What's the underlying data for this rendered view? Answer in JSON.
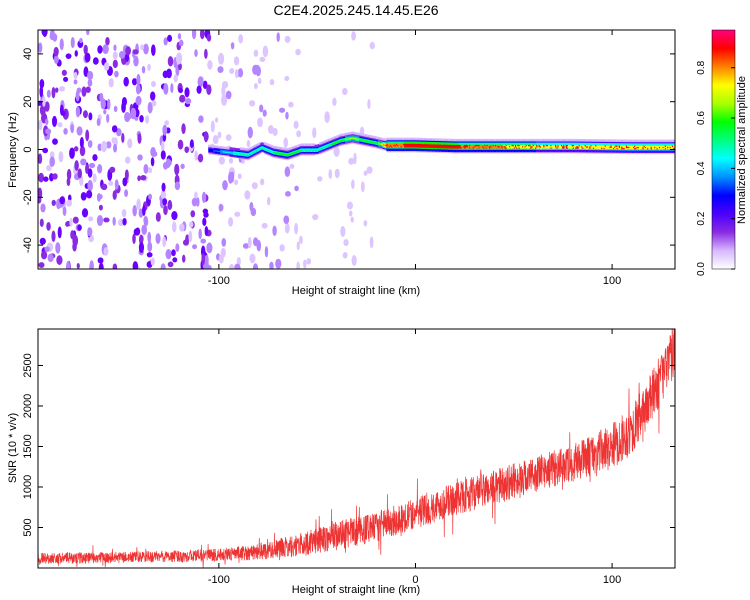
{
  "figure_title": "C2E4.2025.245.14.45.E26",
  "chart_data": [
    {
      "type": "heatmap",
      "title": "C2E4.2025.245.14.45.E26",
      "xlabel": "Height of straight line (km)",
      "ylabel": "Frequency (Hz)",
      "xlim": [
        -192,
        132
      ],
      "ylim": [
        -50,
        50
      ],
      "xticks": [
        -100,
        0,
        100
      ],
      "xtick_labels": [
        "-100",
        "",
        "100"
      ],
      "yticks": [
        -40,
        -20,
        0,
        20,
        40
      ],
      "ytick_labels": [
        "-40",
        "-20",
        "0",
        "20",
        "40"
      ],
      "colorbar": {
        "label": "Normalized spectral amplitude",
        "range": [
          0,
          0.95
        ],
        "ticks": [
          0,
          0.2,
          0.4,
          0.6,
          0.8
        ],
        "tick_labels": [
          "0.0",
          "0.2",
          "0.4",
          "0.6",
          "0.8"
        ],
        "colormap": [
          "#ffffff",
          "#d8b8ff",
          "#8a2be2",
          "#4b00ff",
          "#0000ff",
          "#0090ff",
          "#00ffff",
          "#00ff80",
          "#00ff00",
          "#aaff00",
          "#ffff00",
          "#ff8000",
          "#ff0000",
          "#ff0080"
        ]
      },
      "ridge": {
        "x": [
          -105,
          -95,
          -85,
          -78,
          -72,
          -65,
          -58,
          -50,
          -44,
          -38,
          -32,
          -26,
          -20,
          -15,
          -10,
          0,
          20,
          50,
          80,
          110,
          132
        ],
        "frequency_hz": [
          0,
          -1,
          -2,
          1,
          -1,
          -2,
          0,
          0,
          2,
          4,
          5,
          4,
          3,
          2,
          2,
          2,
          1.5,
          1.5,
          1.5,
          1.2,
          1.2
        ],
        "peak_amplitude": [
          0.3,
          0.45,
          0.55,
          0.5,
          0.55,
          0.6,
          0.55,
          0.5,
          0.55,
          0.6,
          0.65,
          0.6,
          0.55,
          0.85,
          0.8,
          0.9,
          0.85,
          0.75,
          0.7,
          0.72,
          0.7
        ]
      },
      "noise_regions": [
        {
          "x_range": [
            -192,
            -105
          ],
          "description": "dense broadband noise",
          "level": 0.25
        },
        {
          "x_range": [
            -105,
            -60
          ],
          "description": "sparse noise",
          "level": 0.12
        },
        {
          "x_range": [
            -60,
            -20
          ],
          "description": "very sparse noise",
          "level": 0.05
        }
      ]
    },
    {
      "type": "line",
      "xlabel": "Height of straight line (km)",
      "ylabel": "SNR (10 * v/v)",
      "xlim": [
        -192,
        132
      ],
      "ylim": [
        0,
        2950
      ],
      "xticks": [
        -100,
        0,
        100
      ],
      "xtick_labels": [
        "-100",
        "0",
        "100"
      ],
      "yticks": [
        500,
        1000,
        1500,
        2000,
        2500
      ],
      "ytick_labels": [
        "500",
        "1000",
        "1500",
        "2000",
        "2500"
      ],
      "series": [
        {
          "name": "SNR",
          "color": "#ee3333",
          "x": [
            -192,
            -150,
            -120,
            -100,
            -80,
            -60,
            -40,
            -20,
            0,
            20,
            40,
            60,
            80,
            100,
            110,
            120,
            132
          ],
          "mean": [
            120,
            130,
            145,
            160,
            200,
            280,
            400,
            500,
            680,
            850,
            1000,
            1150,
            1300,
            1500,
            1700,
            2100,
            2700
          ],
          "spread": [
            70,
            70,
            75,
            80,
            100,
            140,
            180,
            180,
            200,
            200,
            220,
            220,
            230,
            280,
            300,
            320,
            300
          ]
        }
      ]
    }
  ]
}
